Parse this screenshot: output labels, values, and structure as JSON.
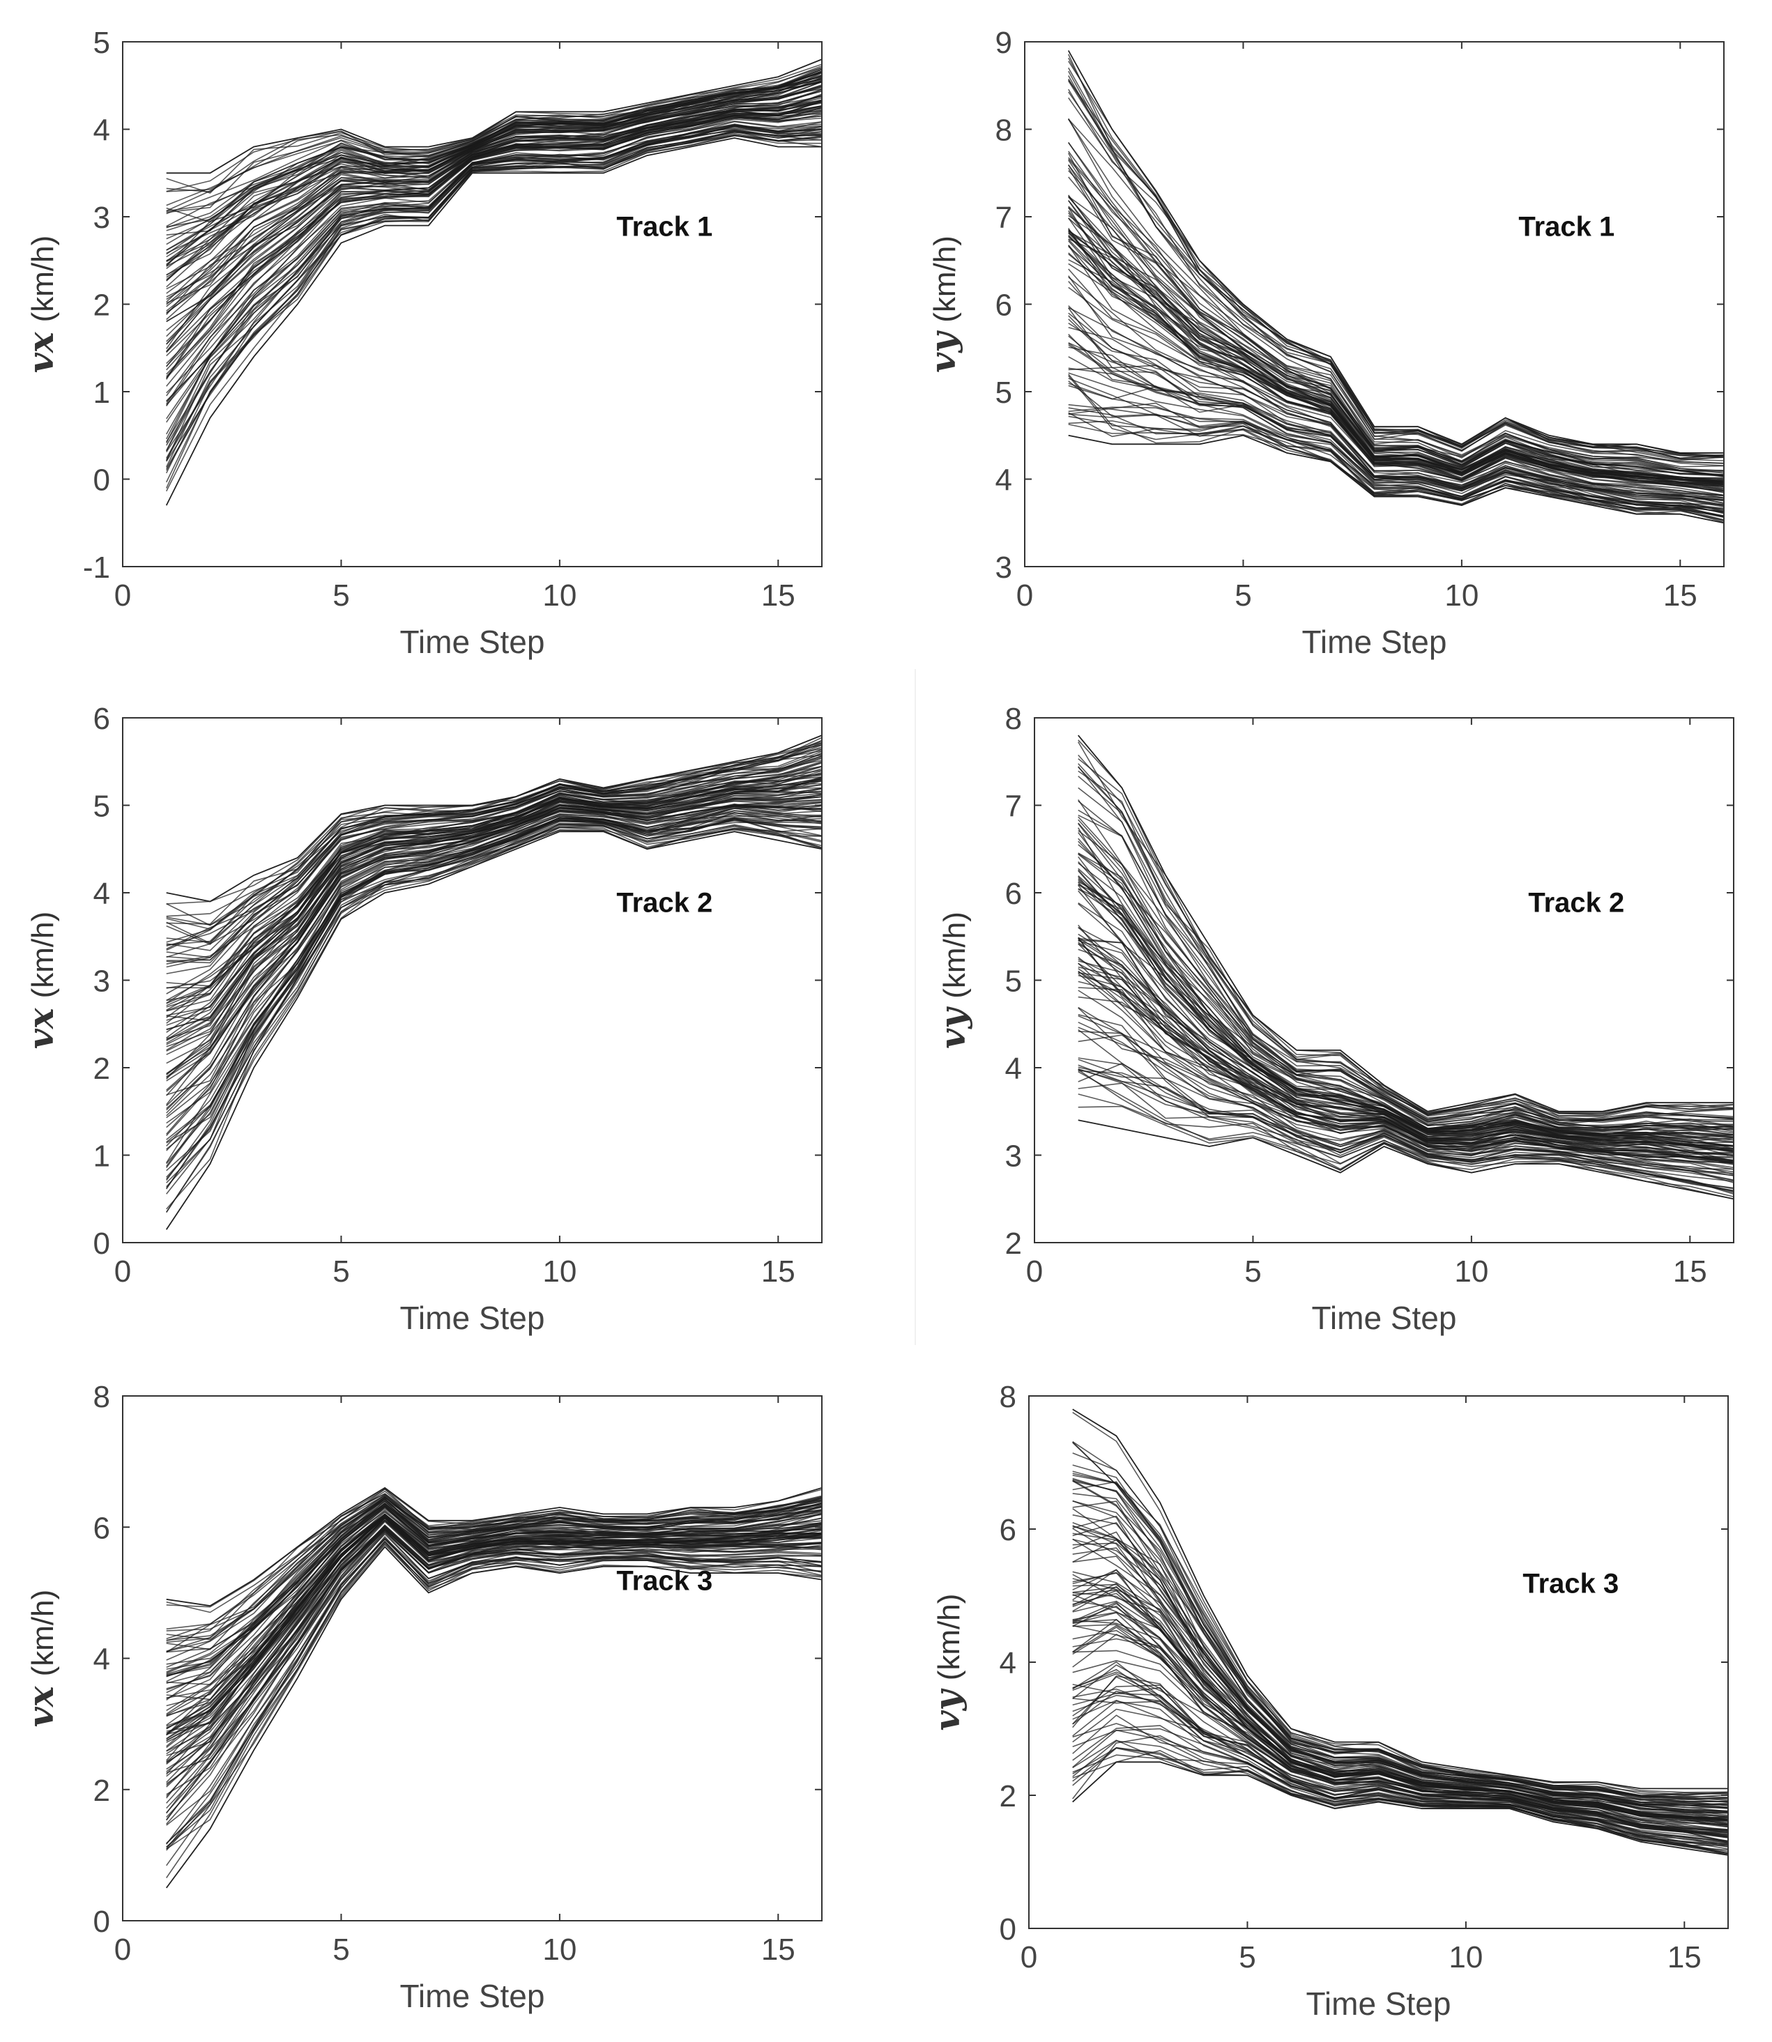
{
  "chart_data": [
    {
      "id": "vx-track1",
      "type": "line",
      "title": "",
      "annotation": "Track 1",
      "xlabel": "Time Step",
      "ylabel": {
        "var": "Vx",
        "unit": "(km/h)"
      },
      "xlim": [
        0,
        16
      ],
      "ylim": [
        -1,
        5
      ],
      "xticks": [
        0,
        5,
        10,
        15
      ],
      "yticks": [
        -1,
        0,
        1,
        2,
        3,
        4,
        5
      ],
      "grid": false,
      "x": [
        1,
        2,
        3,
        4,
        5,
        6,
        7,
        8,
        9,
        10,
        11,
        12,
        13,
        14,
        15,
        16
      ],
      "band_low": [
        -0.3,
        0.7,
        1.4,
        2.0,
        2.7,
        2.9,
        2.9,
        3.5,
        3.5,
        3.5,
        3.5,
        3.7,
        3.8,
        3.9,
        3.8,
        3.8
      ],
      "band_high": [
        3.5,
        3.5,
        3.8,
        3.9,
        4.0,
        3.8,
        3.8,
        3.9,
        4.2,
        4.2,
        4.2,
        4.3,
        4.4,
        4.5,
        4.6,
        4.8
      ],
      "series_count": 100
    },
    {
      "id": "vy-track1",
      "type": "line",
      "title": "",
      "annotation": "Track 1",
      "xlabel": "Time Step",
      "ylabel": {
        "var": "Vy",
        "unit": "(km/h)"
      },
      "xlim": [
        0,
        16
      ],
      "ylim": [
        3,
        9
      ],
      "xticks": [
        0,
        5,
        10,
        15
      ],
      "yticks": [
        3,
        4,
        5,
        6,
        7,
        8,
        9
      ],
      "grid": false,
      "x": [
        1,
        2,
        3,
        4,
        5,
        6,
        7,
        8,
        9,
        10,
        11,
        12,
        13,
        14,
        15,
        16
      ],
      "band_low": [
        4.5,
        4.4,
        4.4,
        4.4,
        4.5,
        4.3,
        4.2,
        3.8,
        3.8,
        3.7,
        3.9,
        3.8,
        3.7,
        3.6,
        3.6,
        3.5
      ],
      "band_high": [
        8.9,
        8.0,
        7.3,
        6.5,
        6.0,
        5.6,
        5.4,
        4.6,
        4.6,
        4.4,
        4.7,
        4.5,
        4.4,
        4.4,
        4.3,
        4.3
      ],
      "series_count": 100
    },
    {
      "id": "vx-track2",
      "type": "line",
      "title": "",
      "annotation": "Track 2",
      "xlabel": "Time Step",
      "ylabel": {
        "var": "Vx",
        "unit": "(km/h)"
      },
      "xlim": [
        0,
        16
      ],
      "ylim": [
        0,
        6
      ],
      "xticks": [
        0,
        5,
        10,
        15
      ],
      "yticks": [
        0,
        1,
        2,
        3,
        4,
        5,
        6
      ],
      "grid": false,
      "x": [
        1,
        2,
        3,
        4,
        5,
        6,
        7,
        8,
        9,
        10,
        11,
        12,
        13,
        14,
        15,
        16
      ],
      "band_low": [
        0.15,
        0.9,
        2.0,
        2.8,
        3.7,
        4.0,
        4.1,
        4.3,
        4.5,
        4.7,
        4.7,
        4.5,
        4.6,
        4.7,
        4.6,
        4.5
      ],
      "band_high": [
        4.0,
        3.9,
        4.2,
        4.4,
        4.9,
        5.0,
        5.0,
        5.0,
        5.1,
        5.3,
        5.2,
        5.3,
        5.4,
        5.5,
        5.6,
        5.8
      ],
      "series_count": 100
    },
    {
      "id": "vy-track2",
      "type": "line",
      "title": "",
      "annotation": "Track 2",
      "xlabel": "Time Step",
      "ylabel": {
        "var": "Vy",
        "unit": "(km/h)"
      },
      "xlim": [
        0,
        16
      ],
      "ylim": [
        2,
        8
      ],
      "xticks": [
        0,
        5,
        10,
        15
      ],
      "yticks": [
        2,
        3,
        4,
        5,
        6,
        7,
        8
      ],
      "grid": false,
      "x": [
        1,
        2,
        3,
        4,
        5,
        6,
        7,
        8,
        9,
        10,
        11,
        12,
        13,
        14,
        15,
        16
      ],
      "band_low": [
        3.4,
        3.3,
        3.2,
        3.1,
        3.2,
        3.0,
        2.8,
        3.1,
        2.9,
        2.8,
        2.9,
        2.9,
        2.8,
        2.7,
        2.6,
        2.5
      ],
      "band_high": [
        7.8,
        7.2,
        6.2,
        5.4,
        4.6,
        4.2,
        4.2,
        3.8,
        3.5,
        3.6,
        3.7,
        3.5,
        3.5,
        3.6,
        3.6,
        3.6
      ],
      "series_count": 100
    },
    {
      "id": "vx-track3",
      "type": "line",
      "title": "",
      "annotation": "Track 3",
      "xlabel": "Time Step",
      "ylabel": {
        "var": "Vx",
        "unit": "(km/h)"
      },
      "xlim": [
        0,
        16
      ],
      "ylim": [
        0,
        8
      ],
      "xticks": [
        0,
        5,
        10,
        15
      ],
      "yticks": [
        0,
        2,
        4,
        6,
        8
      ],
      "grid": false,
      "x": [
        1,
        2,
        3,
        4,
        5,
        6,
        7,
        8,
        9,
        10,
        11,
        12,
        13,
        14,
        15,
        16
      ],
      "band_low": [
        0.5,
        1.4,
        2.6,
        3.7,
        4.9,
        5.7,
        5.0,
        5.3,
        5.4,
        5.3,
        5.4,
        5.4,
        5.3,
        5.3,
        5.3,
        5.2
      ],
      "band_high": [
        4.9,
        4.8,
        5.2,
        5.7,
        6.2,
        6.6,
        6.1,
        6.1,
        6.2,
        6.3,
        6.2,
        6.2,
        6.3,
        6.3,
        6.4,
        6.6
      ],
      "series_count": 100
    },
    {
      "id": "vy-track3",
      "type": "line",
      "title": "",
      "annotation": "Track 3",
      "xlabel": "Time Step",
      "ylabel": {
        "var": "Vy",
        "unit": "(km/h)"
      },
      "xlim": [
        0,
        16
      ],
      "ylim": [
        0,
        8
      ],
      "xticks": [
        0,
        5,
        10,
        15
      ],
      "yticks": [
        0,
        2,
        4,
        6,
        8
      ],
      "grid": false,
      "x": [
        1,
        2,
        3,
        4,
        5,
        6,
        7,
        8,
        9,
        10,
        11,
        12,
        13,
        14,
        15,
        16
      ],
      "band_low": [
        1.9,
        2.5,
        2.5,
        2.3,
        2.3,
        2.0,
        1.8,
        1.9,
        1.8,
        1.8,
        1.8,
        1.6,
        1.5,
        1.3,
        1.2,
        1.1
      ],
      "band_high": [
        7.8,
        7.4,
        6.4,
        5.0,
        3.8,
        3.0,
        2.8,
        2.8,
        2.5,
        2.4,
        2.3,
        2.2,
        2.2,
        2.1,
        2.1,
        2.1
      ],
      "series_count": 100
    }
  ]
}
